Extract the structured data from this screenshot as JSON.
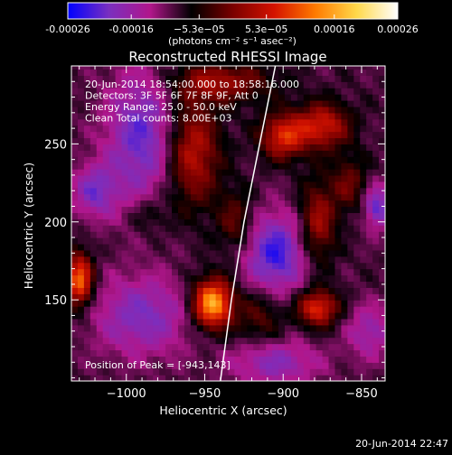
{
  "colorbar": {
    "ticks": [
      -0.00026,
      -0.00016,
      -5.3e-05,
      5.3e-05,
      0.00016,
      0.00026
    ],
    "tick_labels": [
      "-0.00026",
      "-0.00016",
      "−5.3e−05",
      "5.3e−05",
      "0.00016",
      "0.00026"
    ],
    "range": [
      -0.00026,
      0.00026
    ],
    "units": "(photons cm⁻² s⁻¹ asec⁻²)",
    "colors": [
      "#0000ff",
      "#7a2fbf",
      "#b1168b",
      "#000000",
      "#7a0000",
      "#d41200",
      "#ff7a00",
      "#ffd84a",
      "#ffffff"
    ]
  },
  "chart_data": {
    "type": "heatmap",
    "title": "Reconstructed RHESSI Image",
    "xlabel": "Heliocentric X (arcsec)",
    "ylabel": "Heliocentric Y (arcsec)",
    "xlim": [
      -1035,
      -835
    ],
    "ylim": [
      98,
      300
    ],
    "xticks": [
      -1000,
      -950,
      -900,
      -850
    ],
    "xtick_labels": [
      "−1000",
      "−950",
      "−900",
      "−850"
    ],
    "yticks": [
      150,
      200,
      250
    ],
    "ytick_labels": [
      "150",
      "200",
      "250"
    ],
    "annotations": [
      "20-Jun-2014 18:54:00.000 to 18:58:16.000",
      "Detectors: 3F 5F 6F 7F 8F 9F, Att 0",
      "Energy Range: 25.0 - 50.0 keV",
      "Clean     Total counts: 8.00E+03"
    ],
    "peak_label": "Position of Peak = [-943,143]",
    "peak": [
      -943,
      143
    ],
    "limb_line": [
      [
        -940,
        98
      ],
      [
        -933,
        150
      ],
      [
        -925,
        200
      ],
      [
        -915,
        250
      ],
      [
        -905,
        300
      ]
    ],
    "sources": [
      {
        "x": -945,
        "y": 148,
        "sx": 9,
        "sy": 11,
        "amp": 0.00026
      },
      {
        "x": -1030,
        "y": 163,
        "sx": 6,
        "sy": 12,
        "amp": 0.00021
      },
      {
        "x": -958,
        "y": 245,
        "sx": 12,
        "sy": 24,
        "amp": 0.00014
      },
      {
        "x": -940,
        "y": 290,
        "sx": 22,
        "sy": 9,
        "amp": 0.00011
      },
      {
        "x": -900,
        "y": 255,
        "sx": 10,
        "sy": 10,
        "amp": 0.00016
      },
      {
        "x": -875,
        "y": 262,
        "sx": 12,
        "sy": 10,
        "amp": 0.00015
      },
      {
        "x": -878,
        "y": 200,
        "sx": 8,
        "sy": 18,
        "amp": 0.00012
      },
      {
        "x": -858,
        "y": 225,
        "sx": 8,
        "sy": 12,
        "amp": 8e-05
      },
      {
        "x": -878,
        "y": 145,
        "sx": 9,
        "sy": 8,
        "amp": 0.00017
      },
      {
        "x": -930,
        "y": 200,
        "sx": 8,
        "sy": 14,
        "amp": 8e-05
      },
      {
        "x": -915,
        "y": 140,
        "sx": 10,
        "sy": 12,
        "amp": 7e-05
      },
      {
        "x": -985,
        "y": 205,
        "sx": 8,
        "sy": 8,
        "amp": 5e-05
      }
    ],
    "negatives": [
      {
        "x": -990,
        "y": 255,
        "sx": 16,
        "sy": 30,
        "amp": 0.00012
      },
      {
        "x": -905,
        "y": 180,
        "sx": 14,
        "sy": 18,
        "amp": 0.00014
      },
      {
        "x": -990,
        "y": 140,
        "sx": 22,
        "sy": 18,
        "amp": 0.0001
      },
      {
        "x": -905,
        "y": 110,
        "sx": 20,
        "sy": 10,
        "amp": 9e-05
      },
      {
        "x": -840,
        "y": 210,
        "sx": 6,
        "sy": 10,
        "amp": 0.00012
      },
      {
        "x": -1020,
        "y": 220,
        "sx": 10,
        "sy": 12,
        "amp": 0.0001
      },
      {
        "x": -845,
        "y": 130,
        "sx": 10,
        "sy": 12,
        "amp": 8e-05
      }
    ]
  },
  "footer": {
    "timestamp": "20-Jun-2014 22:47"
  }
}
